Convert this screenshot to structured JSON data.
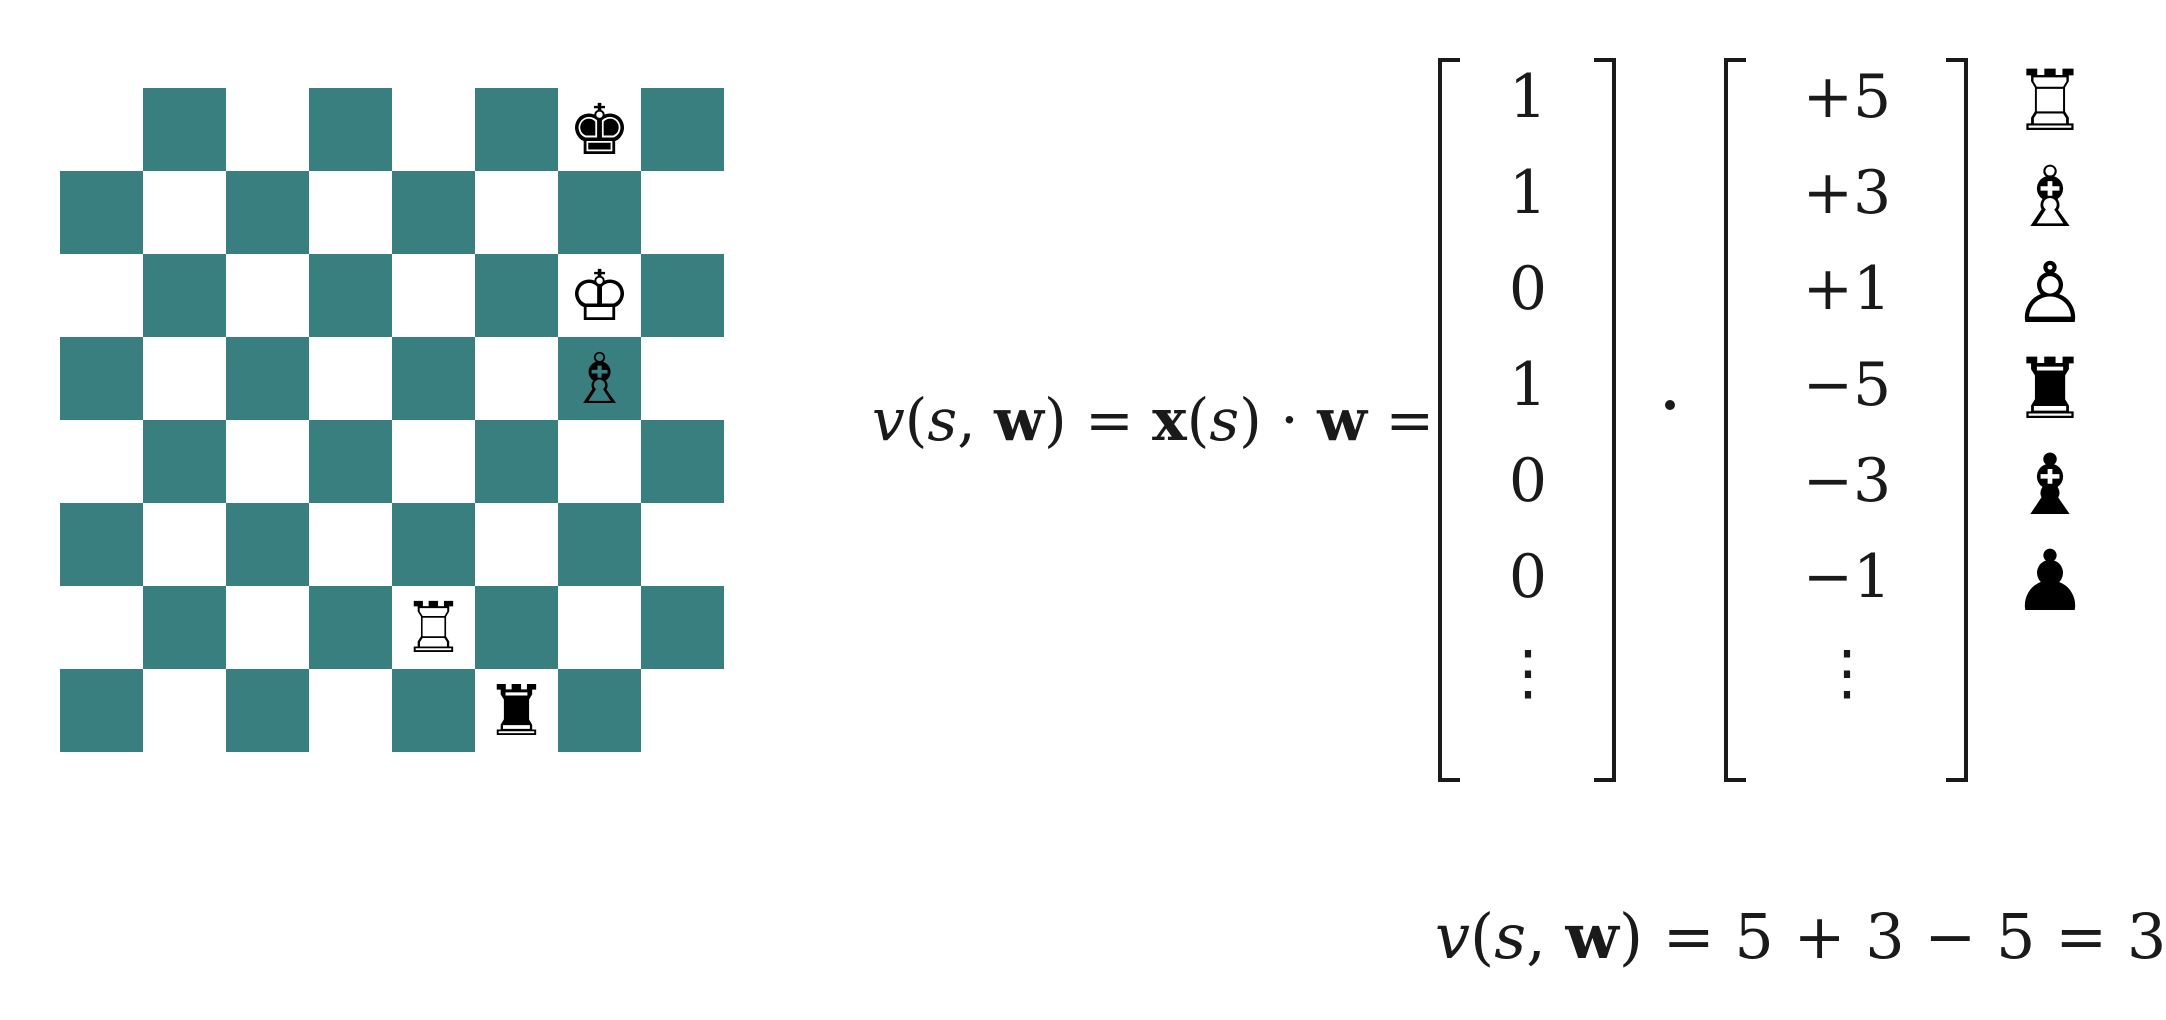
{
  "colors": {
    "dark_square": "#3a7f80",
    "light_square": "#ffffff"
  },
  "board": {
    "light_top_left": true,
    "pieces": [
      {
        "row": 0,
        "col": 6,
        "glyph": "♚",
        "name": "black-king-icon"
      },
      {
        "row": 2,
        "col": 6,
        "glyph": "♔",
        "name": "white-king-icon"
      },
      {
        "row": 3,
        "col": 6,
        "glyph": "♗",
        "name": "white-bishop-icon"
      },
      {
        "row": 6,
        "col": 4,
        "glyph": "♖",
        "name": "white-rook-icon"
      },
      {
        "row": 7,
        "col": 5,
        "glyph": "♜",
        "name": "black-rook-icon"
      }
    ]
  },
  "formula": {
    "lhs_v": "v",
    "lhs_open": "(",
    "lhs_s": "s",
    "lhs_comma": ", ",
    "lhs_w": "w",
    "lhs_close": ")",
    "eq1": " = ",
    "x": "x",
    "x_open": "(",
    "x_s": "s",
    "x_close": ")",
    "dot": " · ",
    "w": "w",
    "eq2": " ="
  },
  "feature_vector": [
    "1",
    "1",
    "0",
    "1",
    "0",
    "0",
    "⋮"
  ],
  "weight_vector": [
    "+5",
    "+3",
    "+1",
    "−5",
    "−3",
    "−1",
    "⋮"
  ],
  "legend_icons": [
    {
      "glyph": "♖",
      "name": "white-rook-icon"
    },
    {
      "glyph": "♗",
      "name": "white-bishop-icon"
    },
    {
      "glyph": "♙",
      "name": "white-pawn-icon"
    },
    {
      "glyph": "♜",
      "name": "black-rook-icon"
    },
    {
      "glyph": "♝",
      "name": "black-bishop-icon"
    },
    {
      "glyph": "♟",
      "name": "black-pawn-icon"
    }
  ],
  "result": {
    "v": "v",
    "open": "(",
    "s": "s",
    "comma": ", ",
    "w": "w",
    "close": ")",
    "rest": " = 5 + 3 − 5 = 3"
  }
}
